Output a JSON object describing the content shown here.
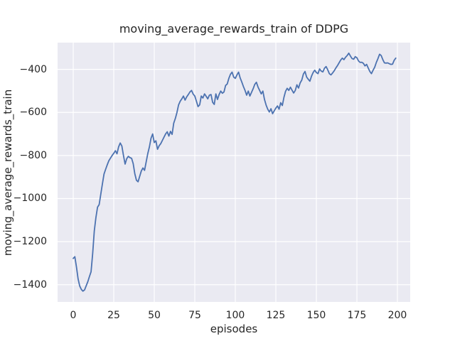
{
  "chart_data": {
    "type": "line",
    "title": "moving_average_rewards_train of DDPG",
    "xlabel": "episodes",
    "ylabel": "moving_average_rewards_train",
    "grid": true,
    "legend": "none",
    "style": {
      "axes_background": "#eaeaf2",
      "grid_color": "#ffffff",
      "line_color": "#4c72b0",
      "text_color": "#262626"
    },
    "xlim": [
      -9.65,
      207.9
    ],
    "ylim": [
      -1480,
      -276
    ],
    "x_ticks": [
      {
        "value": 0,
        "label": "0"
      },
      {
        "value": 25,
        "label": "25"
      },
      {
        "value": 50,
        "label": "50"
      },
      {
        "value": 75,
        "label": "75"
      },
      {
        "value": 100,
        "label": "100"
      },
      {
        "value": 125,
        "label": "125"
      },
      {
        "value": 150,
        "label": "150"
      },
      {
        "value": 175,
        "label": "175"
      },
      {
        "value": 200,
        "label": "200"
      }
    ],
    "y_ticks": [
      {
        "value": -400,
        "label": "−400"
      },
      {
        "value": -600,
        "label": "−600"
      },
      {
        "value": -800,
        "label": "−800"
      },
      {
        "value": -1000,
        "label": "−1000"
      },
      {
        "value": -1200,
        "label": "−1200"
      },
      {
        "value": -1400,
        "label": "−1400"
      }
    ],
    "series": [
      {
        "name": "moving_average_rewards_train",
        "x": [
          0,
          1,
          2,
          3,
          4,
          5,
          6,
          7,
          8,
          9,
          10,
          11,
          12,
          13,
          14,
          15,
          16,
          17,
          18,
          19,
          20,
          21,
          22,
          23,
          24,
          25,
          26,
          27,
          28,
          29,
          30,
          31,
          32,
          33,
          34,
          35,
          36,
          37,
          38,
          39,
          40,
          41,
          42,
          43,
          44,
          45,
          46,
          47,
          48,
          49,
          50,
          51,
          52,
          53,
          54,
          55,
          56,
          57,
          58,
          59,
          60,
          61,
          62,
          63,
          64,
          65,
          66,
          67,
          68,
          69,
          70,
          71,
          72,
          73,
          74,
          75,
          76,
          77,
          78,
          79,
          80,
          81,
          82,
          83,
          84,
          85,
          86,
          87,
          88,
          89,
          90,
          91,
          92,
          93,
          94,
          95,
          96,
          97,
          98,
          99,
          100,
          101,
          102,
          103,
          104,
          105,
          106,
          107,
          108,
          109,
          110,
          111,
          112,
          113,
          114,
          115,
          116,
          117,
          118,
          119,
          120,
          121,
          122,
          123,
          124,
          125,
          126,
          127,
          128,
          129,
          130,
          131,
          132,
          133,
          134,
          135,
          136,
          137,
          138,
          139,
          140,
          141,
          142,
          143,
          144,
          145,
          146,
          147,
          148,
          149,
          150,
          151,
          152,
          153,
          154,
          155,
          156,
          157,
          158,
          159,
          160,
          161,
          162,
          163,
          164,
          165,
          166,
          167,
          168,
          169,
          170,
          171,
          172,
          173,
          174,
          175,
          176,
          177,
          178,
          179,
          180,
          181,
          182,
          183,
          184,
          185,
          186,
          187,
          188,
          189,
          190,
          191,
          192,
          193,
          194,
          195,
          196,
          197,
          198,
          199
        ],
        "y": [
          -1278,
          -1270,
          -1318,
          -1373,
          -1406,
          -1422,
          -1430,
          -1424,
          -1405,
          -1386,
          -1362,
          -1340,
          -1255,
          -1150,
          -1088,
          -1040,
          -1028,
          -980,
          -932,
          -886,
          -864,
          -843,
          -824,
          -812,
          -800,
          -790,
          -778,
          -792,
          -760,
          -742,
          -756,
          -800,
          -840,
          -815,
          -804,
          -810,
          -813,
          -838,
          -885,
          -915,
          -922,
          -897,
          -872,
          -858,
          -869,
          -830,
          -791,
          -760,
          -720,
          -700,
          -740,
          -732,
          -771,
          -755,
          -745,
          -730,
          -715,
          -700,
          -690,
          -710,
          -688,
          -702,
          -650,
          -628,
          -600,
          -565,
          -548,
          -537,
          -524,
          -543,
          -528,
          -517,
          -505,
          -498,
          -515,
          -524,
          -548,
          -573,
          -565,
          -524,
          -533,
          -514,
          -525,
          -537,
          -520,
          -517,
          -553,
          -563,
          -514,
          -540,
          -517,
          -501,
          -511,
          -505,
          -475,
          -468,
          -442,
          -423,
          -413,
          -436,
          -442,
          -426,
          -413,
          -440,
          -459,
          -480,
          -498,
          -520,
          -501,
          -524,
          -507,
          -490,
          -470,
          -460,
          -482,
          -498,
          -514,
          -501,
          -540,
          -566,
          -585,
          -598,
          -583,
          -606,
          -593,
          -580,
          -570,
          -585,
          -555,
          -568,
          -530,
          -502,
          -488,
          -498,
          -483,
          -497,
          -510,
          -498,
          -472,
          -487,
          -463,
          -450,
          -422,
          -410,
          -436,
          -446,
          -455,
          -432,
          -415,
          -404,
          -415,
          -420,
          -398,
          -408,
          -412,
          -395,
          -387,
          -402,
          -420,
          -426,
          -417,
          -407,
          -394,
          -383,
          -370,
          -357,
          -348,
          -355,
          -344,
          -336,
          -325,
          -338,
          -350,
          -353,
          -341,
          -346,
          -361,
          -368,
          -367,
          -372,
          -384,
          -377,
          -394,
          -410,
          -420,
          -404,
          -390,
          -368,
          -350,
          -330,
          -336,
          -355,
          -370,
          -371,
          -370,
          -374,
          -377,
          -376,
          -358,
          -348
        ]
      }
    ]
  }
}
